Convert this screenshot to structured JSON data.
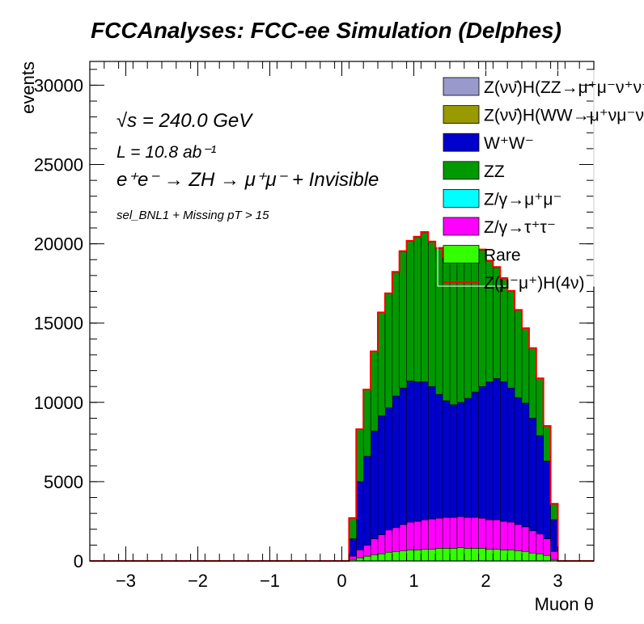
{
  "chart_data": {
    "type": "bar",
    "title": "FCCAnalyses: FCC-ee Simulation (Delphes)",
    "xlabel": "Muon θ",
    "ylabel": "events",
    "xlim": [
      -3.5,
      3.5
    ],
    "ylim": [
      0,
      31500
    ],
    "xticks": [
      -3,
      -2,
      -1,
      0,
      1,
      2,
      3
    ],
    "yticks": [
      0,
      5000,
      10000,
      15000,
      20000,
      25000,
      30000
    ],
    "annotations": [
      {
        "text": "√s = 240.0 GeV"
      },
      {
        "text": "L = 10.8 ab⁻¹"
      },
      {
        "text": "e⁺e⁻ → ZH → μ⁺μ⁻ + Invisible"
      },
      {
        "text": "sel_BNL1 + Missing pT > 15"
      }
    ],
    "legend": [
      {
        "label": "Z(νν̄)H(ZZ→μ⁺μ⁻ν⁺ν⁻)",
        "color": "#9999cc",
        "kind": "fill"
      },
      {
        "label": "Z(νν̄)H(WW→μ⁺νμ⁻ν)",
        "color": "#999900",
        "kind": "fill"
      },
      {
        "label": "W⁺W⁻",
        "color": "#0000cc",
        "kind": "fill"
      },
      {
        "label": "ZZ",
        "color": "#009900",
        "kind": "fill"
      },
      {
        "label": "Z/γ→μ⁺μ⁻",
        "color": "#00ffff",
        "kind": "fill"
      },
      {
        "label": "Z/γ→τ⁺τ⁻",
        "color": "#ff00ff",
        "kind": "fill"
      },
      {
        "label": "Rare",
        "color": "#33ff00",
        "kind": "fill"
      },
      {
        "label": "Z(μ⁻μ⁺)H(4ν)",
        "color": "#ff0000",
        "kind": "line"
      }
    ],
    "bins": {
      "low_edges": [
        0.1,
        0.2,
        0.3,
        0.4,
        0.5,
        0.6,
        0.7,
        0.8,
        0.9,
        1.0,
        1.1,
        1.2,
        1.3,
        1.4,
        1.5,
        1.6,
        1.7,
        1.8,
        1.9,
        2.0,
        2.1,
        2.2,
        2.3,
        2.4,
        2.5,
        2.6,
        2.7,
        2.8,
        2.9
      ],
      "width": 0.1
    },
    "series": [
      {
        "name": "Rare",
        "color": "#33ff00",
        "values": [
          100,
          200,
          300,
          400,
          450,
          550,
          600,
          650,
          700,
          700,
          750,
          750,
          800,
          800,
          800,
          850,
          800,
          800,
          800,
          750,
          750,
          700,
          700,
          650,
          600,
          500,
          450,
          350,
          100
        ]
      },
      {
        "name": "Z/γ→τ⁺τ⁻",
        "color": "#ff00ff",
        "values": [
          200,
          500,
          700,
          1000,
          1200,
          1400,
          1500,
          1650,
          1750,
          1800,
          1850,
          1900,
          1900,
          1950,
          1950,
          1950,
          1950,
          1950,
          1900,
          1850,
          1850,
          1800,
          1750,
          1650,
          1550,
          1400,
          1250,
          1050,
          500
        ]
      },
      {
        "name": "Z/γ→μ⁺μ⁻",
        "color": "#00ffff",
        "values": [
          0,
          0,
          0,
          0,
          0,
          0,
          0,
          0,
          0,
          0,
          0,
          0,
          0,
          0,
          0,
          0,
          0,
          0,
          0,
          0,
          0,
          0,
          0,
          0,
          0,
          0,
          0,
          0,
          0
        ]
      },
      {
        "name": "W⁺W⁻",
        "color": "#0000cc",
        "values": [
          1100,
          4300,
          5600,
          6800,
          7500,
          7700,
          8300,
          8600,
          8900,
          8800,
          8700,
          8350,
          7800,
          7350,
          7100,
          7200,
          7500,
          7900,
          8300,
          8700,
          8900,
          8800,
          8450,
          8000,
          7800,
          7100,
          6200,
          4900,
          2000
        ]
      },
      {
        "name": "ZZ",
        "color": "#009900",
        "values": [
          1300,
          3300,
          4200,
          5000,
          6500,
          7200,
          7800,
          8600,
          8800,
          9100,
          9400,
          9100,
          9200,
          9000,
          9000,
          9200,
          9200,
          8900,
          8600,
          7600,
          7000,
          6500,
          6100,
          5500,
          4700,
          4400,
          3600,
          2200,
          1000
        ]
      },
      {
        "name": "Z(νν̄)H(WW→μ⁺νμ⁻ν)",
        "color": "#999900",
        "values": [
          0,
          0,
          0,
          0,
          0,
          0,
          0,
          0,
          0,
          0,
          0,
          0,
          0,
          0,
          0,
          0,
          0,
          0,
          0,
          0,
          0,
          0,
          0,
          0,
          0,
          0,
          0,
          0,
          0
        ]
      },
      {
        "name": "Z(νν̄)H(ZZ→μ⁺μ⁻ν⁺ν⁻)",
        "color": "#9999cc",
        "values": [
          0,
          0,
          0,
          0,
          0,
          0,
          0,
          0,
          0,
          0,
          0,
          0,
          0,
          0,
          0,
          0,
          0,
          0,
          0,
          0,
          0,
          0,
          0,
          0,
          0,
          0,
          0,
          0,
          0
        ]
      }
    ],
    "signal": {
      "name": "Z(μ⁻μ⁺)H(4ν)",
      "color": "#ff0000",
      "values": [
        5,
        10,
        15,
        20,
        25,
        30,
        35,
        40,
        40,
        45,
        45,
        45,
        45,
        45,
        45,
        45,
        45,
        45,
        45,
        40,
        40,
        40,
        35,
        35,
        30,
        25,
        20,
        15,
        5
      ]
    }
  }
}
